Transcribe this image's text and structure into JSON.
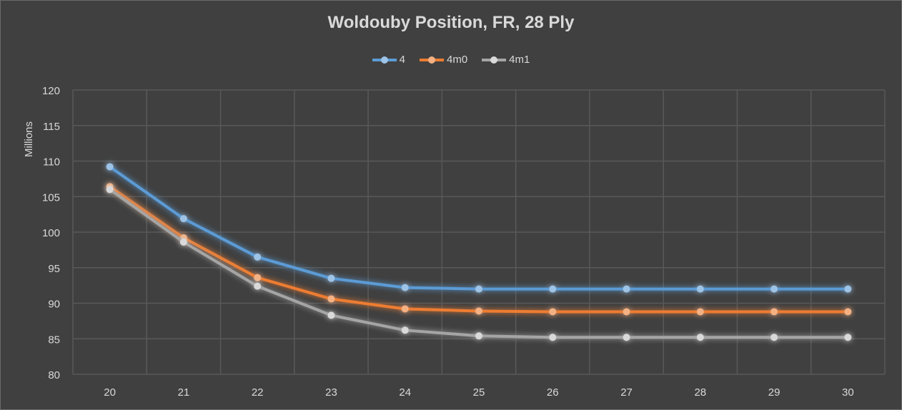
{
  "chart_data": {
    "type": "line",
    "title": "Woldouby Position, FR, 28 Ply",
    "ylabel": "Millions",
    "xlabel": "",
    "categories": [
      "20",
      "21",
      "22",
      "23",
      "24",
      "25",
      "26",
      "27",
      "28",
      "29",
      "30"
    ],
    "ylim": [
      80,
      120
    ],
    "yticks": [
      80,
      85,
      90,
      95,
      100,
      105,
      110,
      115,
      120
    ],
    "grid": true,
    "legend_position": "top",
    "series": [
      {
        "name": "4",
        "color": "#5b9bd5",
        "values": [
          109.2,
          101.9,
          96.5,
          93.5,
          92.2,
          92.0,
          92.0,
          92.0,
          92.0,
          92.0,
          92.0
        ]
      },
      {
        "name": "4m0",
        "color": "#ed7d31",
        "values": [
          106.4,
          99.2,
          93.6,
          90.6,
          89.2,
          88.9,
          88.8,
          88.8,
          88.8,
          88.8,
          88.8
        ]
      },
      {
        "name": "4m1",
        "color": "#a5a5a5",
        "values": [
          106.0,
          98.6,
          92.4,
          88.3,
          86.2,
          85.4,
          85.2,
          85.2,
          85.2,
          85.2,
          85.2
        ]
      }
    ]
  }
}
